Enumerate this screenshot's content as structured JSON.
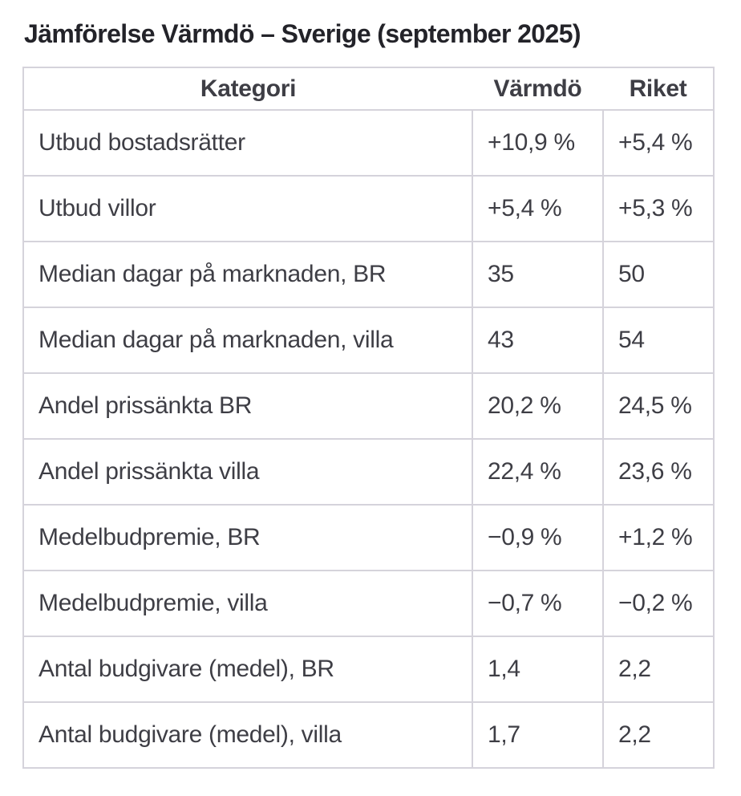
{
  "page": {
    "title": "Jämförelse Värmdö – Sverige (september 2025)"
  },
  "table": {
    "headers": [
      "Kategori",
      "Värmdö",
      "Riket"
    ],
    "rows": [
      {
        "kategori": "Utbud bostadsrätter",
        "varmdo": "+10,9 %",
        "riket": "+5,4 %"
      },
      {
        "kategori": "Utbud villor",
        "varmdo": "+5,4 %",
        "riket": "+5,3 %"
      },
      {
        "kategori": "Median dagar på marknaden, BR",
        "varmdo": "35",
        "riket": "50"
      },
      {
        "kategori": "Median dagar på marknaden, villa",
        "varmdo": "43",
        "riket": "54"
      },
      {
        "kategori": "Andel prissänkta BR",
        "varmdo": "20,2 %",
        "riket": "24,5 %"
      },
      {
        "kategori": "Andel prissänkta villa",
        "varmdo": "22,4 %",
        "riket": "23,6 %"
      },
      {
        "kategori": "Medelbudpremie, BR",
        "varmdo": "−0,9 %",
        "riket": "+1,2 %"
      },
      {
        "kategori": "Medelbudpremie, villa",
        "varmdo": "−0,7 %",
        "riket": "−0,2 %"
      },
      {
        "kategori": "Antal budgivare (medel), BR",
        "varmdo": "1,4",
        "riket": "2,2"
      },
      {
        "kategori": "Antal budgivare (medel), villa",
        "varmdo": "1,7",
        "riket": "2,2"
      }
    ]
  },
  "colors": {
    "title": "#232329",
    "text": "#3e3e45",
    "border": "#d5d3db",
    "background": "#ffffff"
  }
}
